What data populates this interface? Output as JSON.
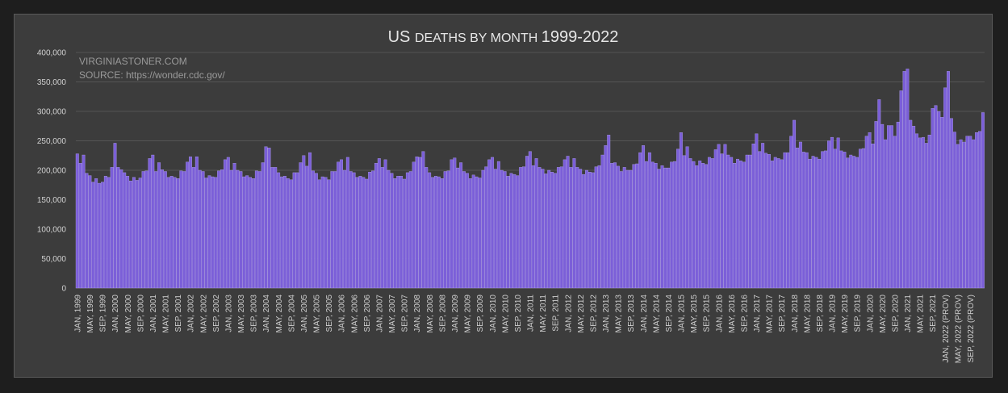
{
  "chart_data": {
    "type": "bar",
    "title": "US deaths by month 1999-2022",
    "xlabel": "",
    "ylabel": "",
    "ylim": [
      0,
      400000
    ],
    "yticks": [
      0,
      50000,
      100000,
      150000,
      200000,
      250000,
      300000,
      350000,
      400000
    ],
    "ytick_labels": [
      "0",
      "50,000",
      "100,000",
      "150,000",
      "200,000",
      "250,000",
      "300,000",
      "350,000",
      "400,000"
    ],
    "grid": true,
    "legend": "none",
    "colors": {
      "bar": "#7b5fd8",
      "bar_edge": "#b7a6f3",
      "background": "#3c3c3c",
      "gridline": "#555555",
      "page": "#1e1e1e"
    },
    "annotations": [
      "VIRGINIASTONER.COM",
      "SOURCE: https://wonder.cdc.gov/"
    ],
    "x_tick_labels": [
      "JAN, 1999",
      "MAY, 1999",
      "SEP, 1999",
      "JAN, 2000",
      "MAY, 2000",
      "SEP, 2000",
      "JAN, 2001",
      "MAY, 2001",
      "SEP, 2001",
      "JAN, 2002",
      "MAY, 2002",
      "SEP, 2002",
      "JAN, 2003",
      "MAY, 2003",
      "SEP, 2003",
      "JAN, 2004",
      "MAY, 2004",
      "SEP, 2004",
      "JAN, 2005",
      "MAY, 2005",
      "SEP, 2005",
      "JAN, 2006",
      "MAY, 2006",
      "SEP, 2006",
      "JAN, 2007",
      "MAY, 2007",
      "SEP, 2007",
      "JAN, 2008",
      "MAY, 2008",
      "SEP, 2008",
      "JAN, 2009",
      "MAY, 2009",
      "SEP, 2009",
      "JAN, 2010",
      "MAY, 2010",
      "SEP, 2010",
      "JAN, 2011",
      "MAY, 2011",
      "SEP, 2011",
      "JAN, 2012",
      "MAY, 2012",
      "SEP, 2012",
      "JAN, 2013",
      "MAY, 2013",
      "SEP, 2013",
      "JAN, 2014",
      "MAY, 2014",
      "SEP, 2014",
      "JAN, 2015",
      "MAY, 2015",
      "SEP, 2015",
      "JAN, 2016",
      "MAY, 2016",
      "SEP, 2016",
      "JAN, 2017",
      "MAY, 2017",
      "SEP, 2017",
      "JAN, 2018",
      "MAY, 2018",
      "SEP, 2018",
      "JAN, 2019",
      "MAY, 2019",
      "SEP, 2019",
      "JAN, 2020",
      "MAY, 2020",
      "SEP, 2020",
      "JAN, 2021",
      "MAY, 2021",
      "SEP, 2021",
      "JAN, 2022 (PROV)",
      "MAY, 2022 (PROV)",
      "SEP, 2022 (PROV)"
    ],
    "values": [
      228000,
      212000,
      226000,
      195000,
      191000,
      180000,
      186000,
      178000,
      180000,
      190000,
      188000,
      205000,
      246000,
      205000,
      201000,
      196000,
      190000,
      182000,
      188000,
      183000,
      187000,
      198000,
      199000,
      220000,
      226000,
      198000,
      213000,
      201000,
      198000,
      188000,
      190000,
      188000,
      186000,
      199000,
      198000,
      214000,
      223000,
      205000,
      223000,
      200000,
      198000,
      187000,
      191000,
      189000,
      188000,
      199000,
      201000,
      218000,
      222000,
      200000,
      212000,
      200000,
      198000,
      189000,
      191000,
      188000,
      186000,
      199000,
      198000,
      213000,
      240000,
      238000,
      205000,
      205000,
      196000,
      189000,
      190000,
      186000,
      184000,
      196000,
      196000,
      213000,
      225000,
      207000,
      230000,
      199000,
      195000,
      184000,
      189000,
      188000,
      184000,
      198000,
      198000,
      214000,
      218000,
      200000,
      222000,
      198000,
      196000,
      188000,
      190000,
      188000,
      185000,
      197000,
      199000,
      212000,
      220000,
      205000,
      218000,
      200000,
      195000,
      186000,
      190000,
      190000,
      185000,
      196000,
      198000,
      214000,
      223000,
      222000,
      232000,
      205000,
      196000,
      188000,
      190000,
      189000,
      186000,
      198000,
      199000,
      218000,
      221000,
      204000,
      213000,
      198000,
      195000,
      186000,
      192000,
      189000,
      187000,
      200000,
      206000,
      218000,
      222000,
      202000,
      215000,
      200000,
      198000,
      190000,
      195000,
      193000,
      191000,
      205000,
      206000,
      224000,
      232000,
      208000,
      220000,
      205000,
      202000,
      194000,
      200000,
      197000,
      195000,
      205000,
      206000,
      218000,
      224000,
      205000,
      220000,
      205000,
      202000,
      193000,
      200000,
      197000,
      196000,
      206000,
      208000,
      226000,
      242000,
      260000,
      212000,
      213000,
      207000,
      198000,
      205000,
      200000,
      200000,
      210000,
      211000,
      230000,
      242000,
      215000,
      230000,
      214000,
      212000,
      202000,
      208000,
      204000,
      204000,
      214000,
      215000,
      236000,
      264000,
      225000,
      240000,
      220000,
      215000,
      208000,
      216000,
      212000,
      210000,
      222000,
      220000,
      235000,
      244000,
      228000,
      244000,
      226000,
      222000,
      212000,
      219000,
      216000,
      214000,
      226000,
      226000,
      245000,
      262000,
      232000,
      246000,
      229000,
      227000,
      216000,
      222000,
      220000,
      218000,
      230000,
      230000,
      258000,
      285000,
      238000,
      248000,
      231000,
      230000,
      219000,
      224000,
      222000,
      219000,
      232000,
      233000,
      250000,
      256000,
      236000,
      255000,
      233000,
      231000,
      221000,
      226000,
      224000,
      222000,
      236000,
      237000,
      258000,
      264000,
      245000,
      283000,
      320000,
      278000,
      252000,
      276000,
      276000,
      258000,
      282000,
      335000,
      368000,
      372000,
      285000,
      275000,
      262000,
      255000,
      256000,
      246000,
      260000,
      305000,
      310000,
      300000,
      290000,
      340000,
      368000,
      288000,
      265000,
      244000,
      252000,
      248000,
      258000,
      258000,
      252000,
      264000,
      266000,
      298000
    ]
  }
}
